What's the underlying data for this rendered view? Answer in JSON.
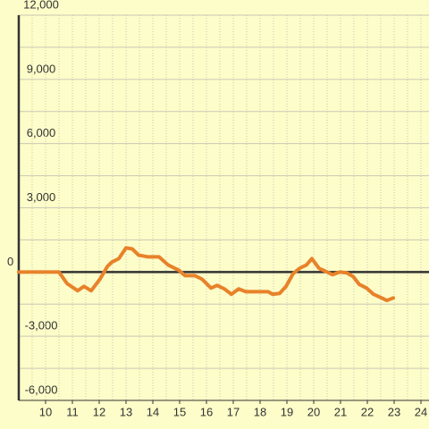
{
  "chart_data": {
    "type": "line",
    "x": [
      9,
      10.5,
      10.8,
      11.2,
      11.43,
      11.7,
      12.03,
      12.3,
      12.47,
      12.73,
      13,
      13.23,
      13.47,
      13.8,
      14.23,
      14.57,
      14.97,
      15.2,
      15.57,
      15.83,
      16.17,
      16.4,
      16.67,
      16.93,
      17.2,
      17.47,
      17.97,
      18.3,
      18.47,
      18.73,
      18.97,
      19.23,
      19.47,
      19.73,
      19.93,
      20.2,
      20.43,
      20.7,
      20.97,
      21.23,
      21.47,
      21.7,
      21.97,
      22.23,
      22.53,
      22.73,
      22.97
    ],
    "series": [
      {
        "color": "#e8822a",
        "values": [
          0,
          0,
          -540,
          -875,
          -670,
          -875,
          -330,
          250,
          460,
          625,
          1125,
          1080,
          790,
          710,
          710,
          330,
          80,
          -170,
          -170,
          -330,
          -750,
          -625,
          -790,
          -1040,
          -790,
          -920,
          -920,
          -920,
          -1040,
          -1000,
          -670,
          -80,
          170,
          330,
          625,
          170,
          40,
          -125,
          0,
          -40,
          -210,
          -580,
          -750,
          -1040,
          -1210,
          -1330,
          -1210
        ]
      }
    ],
    "xlim": [
      9,
      24.3
    ],
    "ylim": [
      -6000,
      12000
    ],
    "xticks": [
      10,
      11,
      12,
      13,
      14,
      15,
      16,
      17,
      18,
      19,
      20,
      21,
      22,
      23,
      24
    ],
    "xminor_ticks": [
      9.5,
      10.5,
      11.5,
      12.5,
      13.5,
      14.5,
      15.5,
      16.5,
      17.5,
      18.5,
      19.5,
      20.5,
      21.5,
      22.5,
      23.5
    ],
    "yticks": [
      {
        "value": -6000,
        "label": "-6,000"
      },
      {
        "value": -3000,
        "label": "-3,000"
      },
      0,
      {
        "value": 3000,
        "label": "3,000"
      },
      {
        "value": 6000,
        "label": "6,000"
      },
      {
        "value": 9000,
        "label": "9,000"
      },
      {
        "value": 12000,
        "label": "12,000"
      }
    ],
    "yminor_ticks": [
      -4500,
      -1500,
      1500,
      4500,
      7500,
      10500
    ],
    "grid": true
  }
}
